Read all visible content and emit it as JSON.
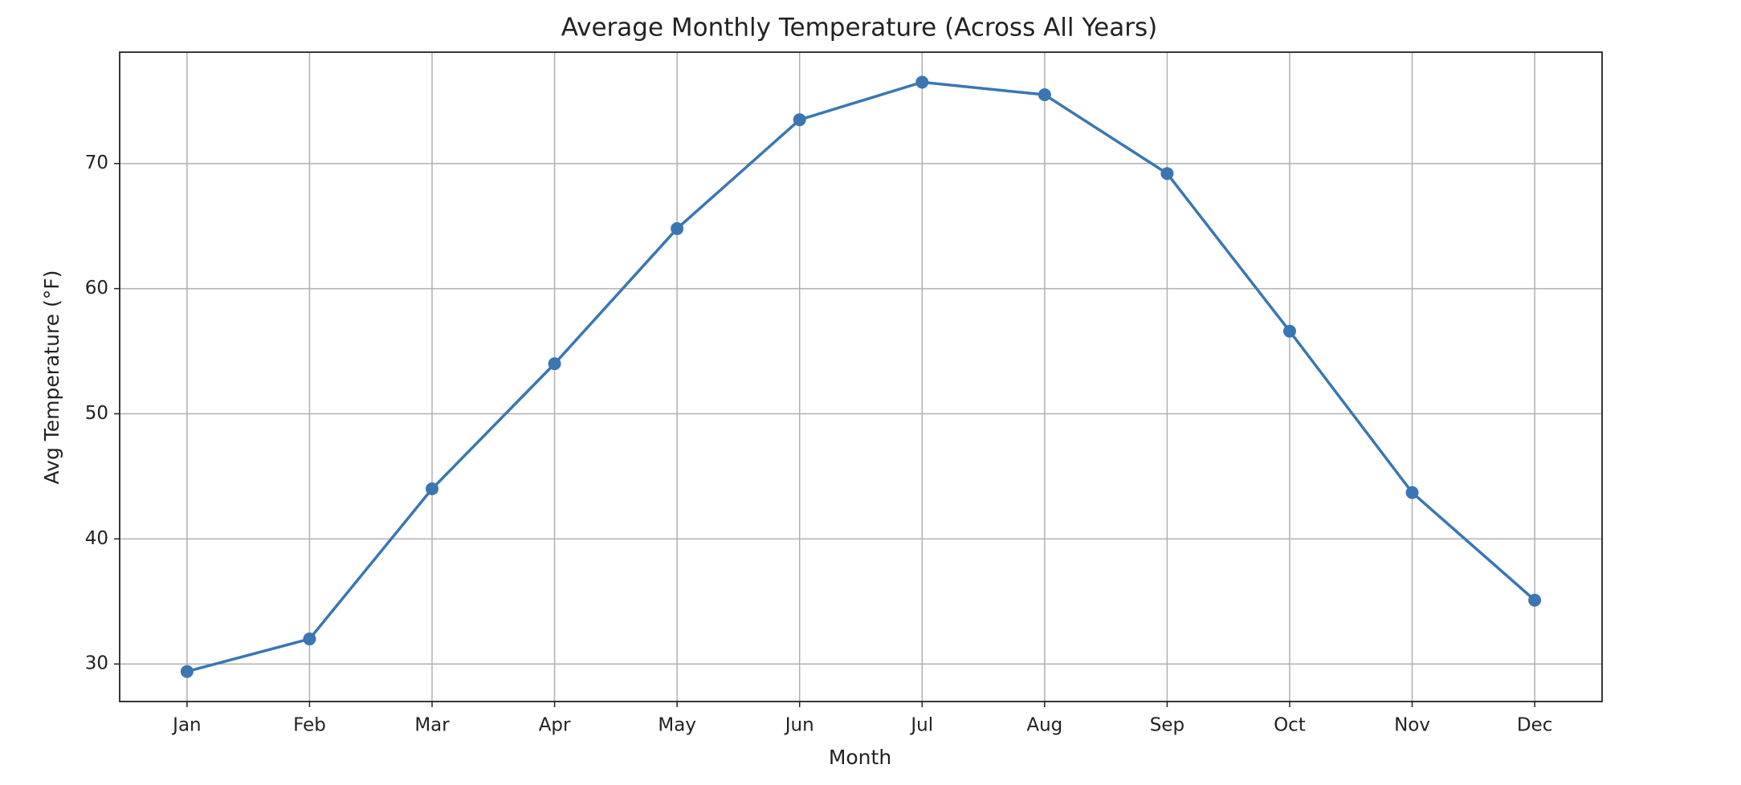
{
  "chart_data": {
    "type": "line",
    "title": "Average Monthly Temperature (Across All Years)",
    "x_label": "Month",
    "y_label": "Avg Temperature (°F)",
    "categories": [
      "Jan",
      "Feb",
      "Mar",
      "Apr",
      "May",
      "Jun",
      "Jul",
      "Aug",
      "Sep",
      "Oct",
      "Nov",
      "Dec"
    ],
    "series": [
      {
        "color": "#3a76b3",
        "values": [
          29.4,
          32.0,
          44.0,
          54.0,
          64.8,
          73.5,
          76.5,
          75.5,
          69.2,
          56.6,
          43.7,
          35.1
        ]
      }
    ],
    "ylim": [
      27.0,
      78.9
    ],
    "yticks": [
      30,
      40,
      50,
      60,
      70
    ],
    "grid": true
  }
}
